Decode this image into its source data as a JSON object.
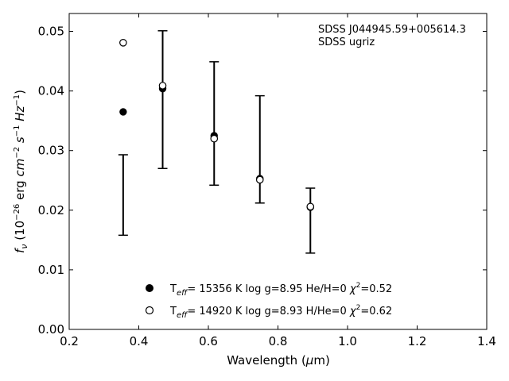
{
  "chart_data": {
    "type": "scatter",
    "xlabel": "Wavelength (μm)",
    "ylabel": "f_ν (10^−26 erg cm^−2 s^−1 Hz^−1)",
    "xlim": [
      0.2,
      1.4
    ],
    "ylim": [
      0.0,
      0.053
    ],
    "x_ticks": [
      0.2,
      0.4,
      0.6,
      0.8,
      1.0,
      1.2,
      1.4
    ],
    "x_tick_labels": [
      "0.2",
      "0.4",
      "0.6",
      "0.8",
      "1.0",
      "1.2",
      "1.4"
    ],
    "y_ticks": [
      0.0,
      0.01,
      0.02,
      0.03,
      0.04,
      0.05
    ],
    "y_tick_labels": [
      "0.00",
      "0.01",
      "0.02",
      "0.03",
      "0.04",
      "0.05"
    ],
    "grid": false,
    "annotations": [
      "SDSS J044945.59+005614.3",
      "SDSS ugriz"
    ],
    "observed": {
      "x": [
        0.3551,
        0.4686,
        0.6166,
        0.748,
        0.8932
      ],
      "y": [
        0.0225,
        0.0386,
        0.0336,
        0.0302,
        0.0183
      ],
      "yerr_low": [
        0.0158,
        0.027,
        0.0242,
        0.0212,
        0.0128
      ],
      "yerr_high": [
        0.0293,
        0.0501,
        0.0449,
        0.0392,
        0.0237
      ],
      "caps": true
    },
    "series": [
      {
        "label": "T_eff= 15356 K  log g=8.95  He/H=0  χ²=0.52",
        "label_parts": {
          "t": "T",
          "sub": "eff",
          "rest": "= 15356 K  log g=8.95  He/H=0  ",
          "chi": "χ",
          "sup": "2",
          "tail": "=0.52"
        },
        "marker": "filled-circle",
        "x": [
          0.3551,
          0.4686,
          0.6166,
          0.748,
          0.8932
        ],
        "y": [
          0.0365,
          0.0404,
          0.0325,
          0.0253,
          0.0205
        ]
      },
      {
        "label": "T_eff= 14920 K  log g=8.93  H/He=0  χ²=0.62",
        "label_parts": {
          "t": "T",
          "sub": "eff",
          "rest": "= 14920 K  log g=8.93  H/He=0  ",
          "chi": "χ",
          "sup": "2",
          "tail": "=0.62"
        },
        "marker": "open-circle",
        "x": [
          0.3551,
          0.4686,
          0.6166,
          0.748,
          0.8932
        ],
        "y": [
          0.0481,
          0.0409,
          0.032,
          0.0251,
          0.0206
        ]
      }
    ],
    "colors": {
      "axis": "#000000",
      "marker": "#000000",
      "background": "#ffffff"
    }
  }
}
